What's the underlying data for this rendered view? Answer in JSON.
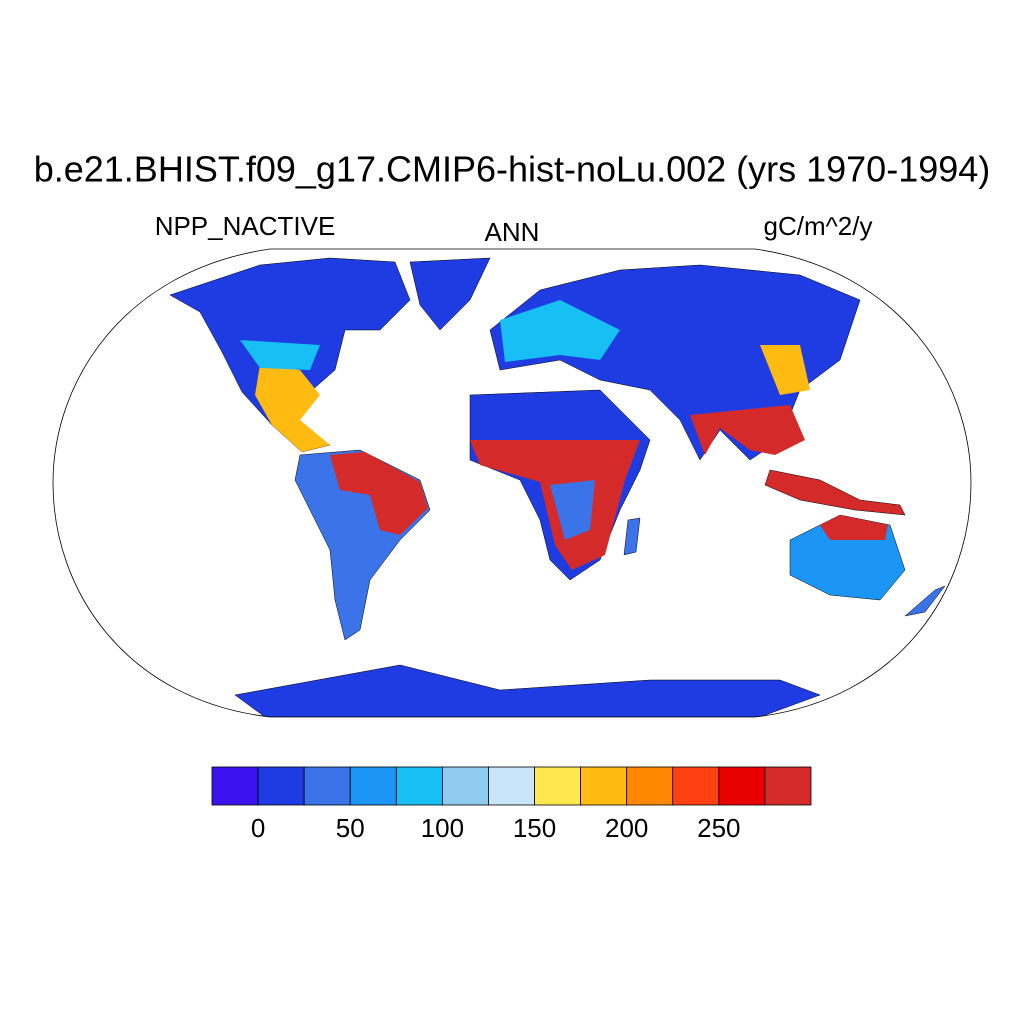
{
  "title": "b.e21.BHIST.f09_g17.CMIP6-hist-noLu.002 (yrs 1970-1994)",
  "left_string": "NPP_NACTIVE",
  "center_string": "ANN",
  "right_string": "gC/m^2/y",
  "colorbar": {
    "colors": [
      "#3c12f0",
      "#1f3ce2",
      "#3a74e8",
      "#1b96f6",
      "#18bff5",
      "#8fcbee",
      "#c9e5f8",
      "#ffe84f",
      "#ffbb12",
      "#ff8800",
      "#ff4010",
      "#e80000",
      "#d42a2a"
    ],
    "lim": [
      -25,
      300
    ],
    "ticks": [
      0,
      50,
      100,
      150,
      200,
      250
    ]
  }
}
